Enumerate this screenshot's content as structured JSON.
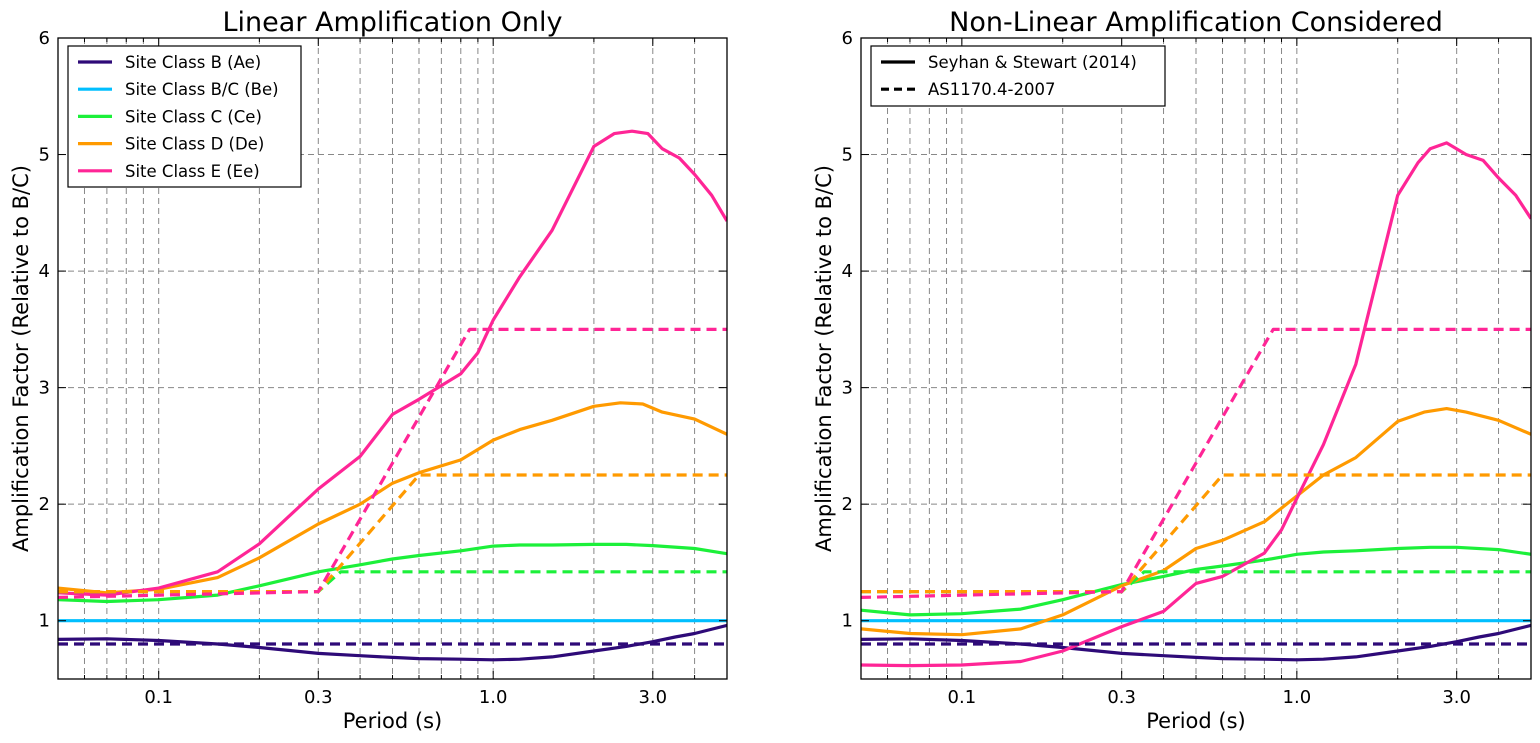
{
  "chart_data": [
    {
      "type": "line",
      "title": "Linear Amplification Only",
      "xlabel": "Period (s)",
      "ylabel": "Amplification Factor (Relative to B/C)",
      "xscale": "log",
      "xlim": [
        0.05,
        5.0
      ],
      "ylim": [
        0.5,
        6
      ],
      "xticks": [
        0.1,
        0.3,
        1.0,
        3.0
      ],
      "xtick_labels": [
        "0.1",
        "0.3",
        "1.0",
        "3.0"
      ],
      "yticks": [
        1,
        2,
        3,
        4,
        5,
        6
      ],
      "ytick_labels": [
        "1",
        "2",
        "3",
        "4",
        "5",
        "6"
      ],
      "grid": true,
      "legend_position": "top-left",
      "legend": [
        {
          "label": "Site Class B (Ae)",
          "color": "#2e0a78",
          "style": "solid"
        },
        {
          "label": "Site Class B/C (Be)",
          "color": "#00bfff",
          "style": "solid"
        },
        {
          "label": "Site Class C (Ce)",
          "color": "#1cf03a",
          "style": "solid"
        },
        {
          "label": "Site Class D (De)",
          "color": "#ff9a00",
          "style": "solid"
        },
        {
          "label": "Site Class E (Ee)",
          "color": "#ff2596",
          "style": "solid"
        }
      ],
      "series": [
        {
          "name": "Site Class B (Ae)",
          "color": "#2e0a78",
          "style": "solid",
          "x": [
            0.05,
            0.07,
            0.1,
            0.15,
            0.2,
            0.3,
            0.4,
            0.5,
            0.6,
            0.8,
            1.0,
            1.2,
            1.5,
            2.0,
            2.5,
            3.0,
            3.5,
            4.0,
            5.0
          ],
          "y": [
            0.84,
            0.845,
            0.83,
            0.8,
            0.77,
            0.72,
            0.7,
            0.685,
            0.675,
            0.67,
            0.665,
            0.67,
            0.69,
            0.74,
            0.78,
            0.82,
            0.86,
            0.89,
            0.96
          ]
        },
        {
          "name": "Site Class B/C (Be)",
          "color": "#00bfff",
          "style": "solid",
          "x": [
            0.05,
            5.0
          ],
          "y": [
            1.0,
            1.0
          ]
        },
        {
          "name": "Site Class C (Ce)",
          "color": "#1cf03a",
          "style": "solid",
          "x": [
            0.05,
            0.07,
            0.1,
            0.15,
            0.2,
            0.3,
            0.4,
            0.5,
            0.6,
            0.8,
            1.0,
            1.2,
            1.5,
            2.0,
            2.5,
            3.0,
            4.0,
            5.0
          ],
          "y": [
            1.18,
            1.165,
            1.18,
            1.22,
            1.3,
            1.42,
            1.48,
            1.53,
            1.56,
            1.6,
            1.64,
            1.65,
            1.65,
            1.655,
            1.655,
            1.645,
            1.62,
            1.575
          ]
        },
        {
          "name": "Site Class D (De)",
          "color": "#ff9a00",
          "style": "solid",
          "x": [
            0.05,
            0.07,
            0.1,
            0.15,
            0.2,
            0.3,
            0.4,
            0.5,
            0.6,
            0.8,
            1.0,
            1.2,
            1.5,
            2.0,
            2.4,
            2.8,
            3.2,
            4.0,
            5.0
          ],
          "y": [
            1.28,
            1.24,
            1.27,
            1.37,
            1.54,
            1.83,
            2.0,
            2.18,
            2.27,
            2.38,
            2.55,
            2.64,
            2.72,
            2.84,
            2.87,
            2.86,
            2.79,
            2.73,
            2.6
          ]
        },
        {
          "name": "Site Class E (Ee)",
          "color": "#ff2596",
          "style": "solid",
          "x": [
            0.05,
            0.07,
            0.1,
            0.15,
            0.2,
            0.3,
            0.4,
            0.5,
            0.6,
            0.8,
            0.9,
            1.0,
            1.2,
            1.5,
            2.0,
            2.3,
            2.6,
            2.9,
            3.2,
            3.6,
            4.0,
            4.5,
            5.0
          ],
          "y": [
            1.24,
            1.22,
            1.28,
            1.42,
            1.66,
            2.13,
            2.41,
            2.77,
            2.9,
            3.12,
            3.3,
            3.58,
            3.95,
            4.35,
            5.07,
            5.18,
            5.2,
            5.18,
            5.05,
            4.97,
            4.83,
            4.65,
            4.43
          ]
        },
        {
          "name": "Site Class B (Ae)",
          "color": "#2e0a78",
          "style": "dashed",
          "x": [
            0.05,
            5.0
          ],
          "y": [
            0.8,
            0.8
          ]
        },
        {
          "name": "Site Class C (Ce)",
          "color": "#1cf03a",
          "style": "dashed",
          "x": [
            0.05,
            0.3,
            0.35,
            5.0
          ],
          "y": [
            1.25,
            1.25,
            1.42,
            1.42
          ]
        },
        {
          "name": "Site Class D (De)",
          "color": "#ff9a00",
          "style": "dashed",
          "x": [
            0.05,
            0.3,
            0.6,
            5.0
          ],
          "y": [
            1.25,
            1.25,
            2.25,
            2.25
          ]
        },
        {
          "name": "Site Class E (Ee)",
          "color": "#ff2596",
          "style": "dashed",
          "x": [
            0.05,
            0.3,
            0.85,
            5.0
          ],
          "y": [
            1.2,
            1.25,
            3.5,
            3.5
          ]
        }
      ]
    },
    {
      "type": "line",
      "title": "Non-Linear Amplification Considered",
      "xlabel": "Period (s)",
      "ylabel": "Amplification Factor (Relative to B/C)",
      "xscale": "log",
      "xlim": [
        0.05,
        5.0
      ],
      "ylim": [
        0.5,
        6
      ],
      "xticks": [
        0.1,
        0.3,
        1.0,
        3.0
      ],
      "xtick_labels": [
        "0.1",
        "0.3",
        "1.0",
        "3.0"
      ],
      "yticks": [
        1,
        2,
        3,
        4,
        5,
        6
      ],
      "ytick_labels": [
        "1",
        "2",
        "3",
        "4",
        "5",
        "6"
      ],
      "grid": true,
      "legend_position": "top-left",
      "legend": [
        {
          "label": "Seyhan & Stewart (2014)",
          "color": "#000000",
          "style": "solid"
        },
        {
          "label": "AS1170.4-2007",
          "color": "#000000",
          "style": "dashed"
        }
      ],
      "series": [
        {
          "name": "Site Class B (Ae)",
          "color": "#2e0a78",
          "style": "solid",
          "x": [
            0.05,
            0.07,
            0.1,
            0.15,
            0.2,
            0.3,
            0.4,
            0.5,
            0.6,
            0.8,
            1.0,
            1.2,
            1.5,
            2.0,
            2.5,
            3.0,
            3.5,
            4.0,
            5.0
          ],
          "y": [
            0.84,
            0.845,
            0.83,
            0.8,
            0.77,
            0.72,
            0.7,
            0.685,
            0.675,
            0.67,
            0.665,
            0.67,
            0.69,
            0.74,
            0.78,
            0.82,
            0.86,
            0.89,
            0.96
          ]
        },
        {
          "name": "Site Class B/C (Be)",
          "color": "#00bfff",
          "style": "solid",
          "x": [
            0.05,
            5.0
          ],
          "y": [
            1.0,
            1.0
          ]
        },
        {
          "name": "Site Class C (Ce)",
          "color": "#1cf03a",
          "style": "solid",
          "x": [
            0.05,
            0.07,
            0.1,
            0.15,
            0.2,
            0.3,
            0.4,
            0.5,
            0.6,
            0.8,
            1.0,
            1.2,
            1.5,
            2.0,
            2.5,
            3.0,
            4.0,
            5.0
          ],
          "y": [
            1.09,
            1.05,
            1.06,
            1.1,
            1.18,
            1.31,
            1.38,
            1.44,
            1.47,
            1.52,
            1.57,
            1.59,
            1.6,
            1.62,
            1.63,
            1.63,
            1.61,
            1.57
          ]
        },
        {
          "name": "Site Class D (De)",
          "color": "#ff9a00",
          "style": "solid",
          "x": [
            0.05,
            0.07,
            0.1,
            0.15,
            0.2,
            0.3,
            0.4,
            0.5,
            0.6,
            0.8,
            1.0,
            1.2,
            1.5,
            2.0,
            2.4,
            2.8,
            3.2,
            4.0,
            5.0
          ],
          "y": [
            0.93,
            0.89,
            0.88,
            0.93,
            1.05,
            1.3,
            1.43,
            1.62,
            1.69,
            1.85,
            2.07,
            2.25,
            2.4,
            2.71,
            2.79,
            2.82,
            2.79,
            2.72,
            2.6
          ]
        },
        {
          "name": "Site Class E (Ee)",
          "color": "#ff2596",
          "style": "solid",
          "x": [
            0.05,
            0.07,
            0.1,
            0.15,
            0.2,
            0.3,
            0.4,
            0.5,
            0.6,
            0.8,
            0.9,
            1.0,
            1.2,
            1.5,
            2.0,
            2.3,
            2.5,
            2.8,
            3.2,
            3.6,
            4.0,
            4.5,
            5.0
          ],
          "y": [
            0.62,
            0.615,
            0.62,
            0.65,
            0.74,
            0.95,
            1.08,
            1.32,
            1.38,
            1.58,
            1.78,
            2.05,
            2.51,
            3.2,
            4.65,
            4.93,
            5.05,
            5.1,
            5.0,
            4.95,
            4.8,
            4.65,
            4.45
          ]
        },
        {
          "name": "Site Class B (Ae)",
          "color": "#2e0a78",
          "style": "dashed",
          "x": [
            0.05,
            5.0
          ],
          "y": [
            0.8,
            0.8
          ]
        },
        {
          "name": "Site Class C (Ce)",
          "color": "#1cf03a",
          "style": "dashed",
          "x": [
            0.05,
            0.3,
            0.35,
            5.0
          ],
          "y": [
            1.25,
            1.25,
            1.42,
            1.42
          ]
        },
        {
          "name": "Site Class D (De)",
          "color": "#ff9a00",
          "style": "dashed",
          "x": [
            0.05,
            0.3,
            0.6,
            5.0
          ],
          "y": [
            1.25,
            1.25,
            2.25,
            2.25
          ]
        },
        {
          "name": "Site Class E (Ee)",
          "color": "#ff2596",
          "style": "dashed",
          "x": [
            0.05,
            0.3,
            0.85,
            5.0
          ],
          "y": [
            1.2,
            1.25,
            3.5,
            3.5
          ]
        }
      ]
    }
  ]
}
